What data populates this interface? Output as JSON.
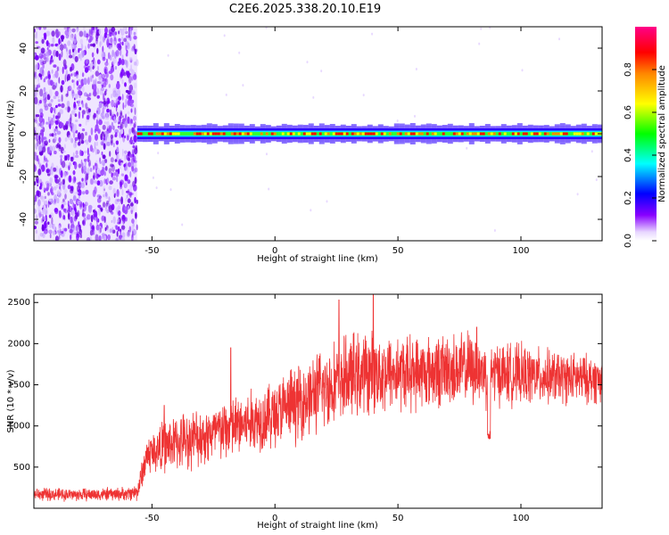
{
  "title": "C2E6.2025.338.20.10.E19",
  "chart_data": [
    {
      "type": "heatmap",
      "xlabel": "Height of straight line (km)",
      "ylabel": "Frequency (Hz)",
      "xlim": [
        -98,
        133
      ],
      "ylim": [
        -50,
        50
      ],
      "xticks": [
        -50,
        0,
        50,
        100
      ],
      "xtick_labels": [
        "-50",
        "0",
        "50",
        "100"
      ],
      "yticks": [
        -40,
        -20,
        0,
        20,
        40
      ],
      "ytick_labels": [
        "-40",
        "-20",
        "0",
        "20",
        "40"
      ],
      "noise_region_x": [
        -98,
        -56
      ],
      "carrier_start_x": -56,
      "carrier_frequency_hz": 0,
      "colorbar": {
        "label": "Normalized spectral amplitude",
        "range": [
          0,
          1
        ],
        "ticks": [
          0.0,
          0.2,
          0.4,
          0.6,
          0.8
        ],
        "tick_labels": [
          "0.0",
          "0.2",
          "0.4",
          "0.6",
          "0.8"
        ],
        "colors": [
          "#ffffff",
          "#8800ff",
          "#0000ff",
          "#00ffff",
          "#00ff00",
          "#ffff00",
          "#ff8800",
          "#ff0000",
          "#ff0088"
        ]
      }
    },
    {
      "type": "line",
      "xlabel": "Height of straight line (km)",
      "ylabel": "SNR (10 * v/v)",
      "xlim": [
        -98,
        133
      ],
      "ylim": [
        0,
        2600
      ],
      "xticks": [
        -50,
        0,
        50,
        100
      ],
      "xtick_labels": [
        "-50",
        "0",
        "50",
        "100"
      ],
      "yticks": [
        500,
        1000,
        1500,
        2000,
        2500
      ],
      "ytick_labels": [
        "500",
        "1000",
        "1500",
        "2000",
        "2500"
      ],
      "color": "#ee3333",
      "envelope": {
        "x": [
          -98,
          -80,
          -60,
          -56,
          -52,
          -45,
          -40,
          -30,
          -20,
          -10,
          0,
          10,
          20,
          30,
          40,
          50,
          60,
          70,
          80,
          86,
          90,
          100,
          110,
          120,
          133
        ],
        "mean": [
          170,
          165,
          175,
          200,
          650,
          750,
          800,
          870,
          950,
          1050,
          1150,
          1300,
          1450,
          1600,
          1650,
          1650,
          1650,
          1680,
          1700,
          1650,
          1650,
          1620,
          1600,
          1580,
          1560
        ],
        "spread": [
          70,
          70,
          75,
          100,
          220,
          280,
          300,
          320,
          340,
          350,
          380,
          420,
          450,
          460,
          450,
          420,
          400,
          400,
          400,
          380,
          350,
          330,
          300,
          280,
          260
        ]
      },
      "dip": {
        "x": 87,
        "y": 800
      },
      "peaks": [
        {
          "x": -45,
          "y": 1250
        },
        {
          "x": -18,
          "y": 1950
        },
        {
          "x": 26,
          "y": 2530
        },
        {
          "x": 40,
          "y": 2600
        },
        {
          "x": 82,
          "y": 2200
        }
      ]
    }
  ]
}
